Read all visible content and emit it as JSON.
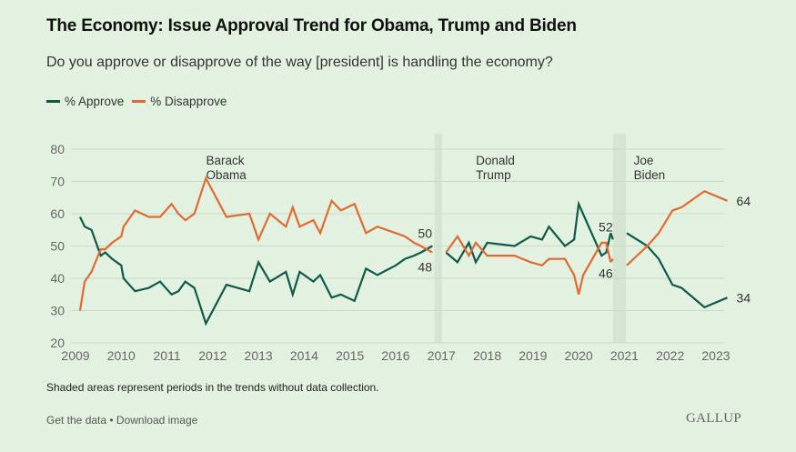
{
  "title": "The Economy: Issue Approval Trend for Obama, Trump and Biden",
  "subtitle": "Do you approve or disapprove of the way [president] is handling the economy?",
  "legend": [
    {
      "label": "% Approve",
      "color": "#0e5a4a"
    },
    {
      "label": "% Disapprove",
      "color": "#e06b32"
    }
  ],
  "note": "Shaded areas represent periods in the trends without data collection.",
  "footer": {
    "get_data": "Get the data",
    "separator": " • ",
    "download": "Download image",
    "logo": "GALLUP"
  },
  "chart_data": {
    "type": "line",
    "title": "The Economy: Issue Approval Trend for Obama, Trump and Biden",
    "xlabel": "",
    "ylabel": "",
    "xlim": [
      2009,
      2023.3
    ],
    "ylim": [
      20,
      80
    ],
    "y_ticks": [
      20,
      30,
      40,
      50,
      60,
      70,
      80
    ],
    "x_ticks": [
      2009,
      2010,
      2011,
      2012,
      2013,
      2014,
      2015,
      2016,
      2017,
      2018,
      2019,
      2020,
      2021,
      2022,
      2023
    ],
    "grid": true,
    "legend_position": "top-left",
    "shaded_gaps": [
      [
        2016.85,
        2017.0
      ],
      [
        2020.75,
        2021.03
      ]
    ],
    "president_labels": [
      {
        "text": [
          "Barack",
          "Obama"
        ],
        "x": 2012.45
      },
      {
        "text": [
          "Donald",
          "Trump"
        ],
        "x": 2018.35
      },
      {
        "text": [
          "Joe",
          "Biden"
        ],
        "x": 2021.8
      }
    ],
    "series": [
      {
        "name": "% Approve",
        "color": "#0e5a4a",
        "segments": [
          {
            "x": [
              2009.1,
              2009.2,
              2009.35,
              2009.55,
              2009.65,
              2009.8,
              2010.0,
              2010.05,
              2010.3,
              2010.6,
              2010.85,
              2011.1,
              2011.25,
              2011.4,
              2011.6,
              2011.85,
              2012.0,
              2012.3,
              2012.8,
              2013.0,
              2013.25,
              2013.6,
              2013.75,
              2013.9,
              2014.2,
              2014.35,
              2014.6,
              2014.8,
              2015.1,
              2015.35,
              2015.6,
              2016.0,
              2016.2,
              2016.4,
              2016.55,
              2016.8
            ],
            "y": [
              59,
              56,
              55,
              47,
              48,
              46,
              44,
              40,
              36,
              37,
              39,
              35,
              36,
              39,
              37,
              26,
              30,
              38,
              36,
              45,
              39,
              42,
              35,
              42,
              39,
              41,
              34,
              35,
              33,
              43,
              41,
              44,
              46,
              47,
              48,
              50
            ]
          },
          {
            "x": [
              2017.1,
              2017.35,
              2017.6,
              2017.75,
              2018.0,
              2018.6,
              2018.95,
              2019.2,
              2019.35,
              2019.7,
              2019.9,
              2020.0,
              2020.5,
              2020.6,
              2020.7
            ],
            "y": [
              48,
              45,
              51,
              45,
              51,
              50,
              53,
              52,
              56,
              50,
              52,
              63,
              47,
              48,
              54
            ]
          },
          {
            "x": [
              2020.7,
              2020.75
            ],
            "y": [
              54,
              52
            ]
          },
          {
            "x": [
              2021.05,
              2021.5,
              2021.75,
              2022.05,
              2022.25,
              2022.75,
              2023.25
            ],
            "y": [
              54,
              50,
              46,
              38,
              37,
              31,
              34
            ]
          }
        ],
        "end_labels": [
          {
            "x": 2016.8,
            "y": 50,
            "text": "50"
          },
          {
            "x": 2020.75,
            "y": 52,
            "text": "52"
          },
          {
            "x": 2023.25,
            "y": 34,
            "text": "34"
          }
        ]
      },
      {
        "name": "% Disapprove",
        "color": "#e06b32",
        "segments": [
          {
            "x": [
              2009.1,
              2009.2,
              2009.35,
              2009.55,
              2009.65,
              2009.8,
              2010.0,
              2010.05,
              2010.3,
              2010.6,
              2010.85,
              2011.1,
              2011.25,
              2011.4,
              2011.6,
              2011.85,
              2012.0,
              2012.3,
              2012.8,
              2013.0,
              2013.25,
              2013.6,
              2013.75,
              2013.9,
              2014.2,
              2014.35,
              2014.6,
              2014.8,
              2015.1,
              2015.35,
              2015.6,
              2016.0,
              2016.2,
              2016.4,
              2016.55,
              2016.8
            ],
            "y": [
              30,
              39,
              42,
              49,
              49,
              51,
              53,
              56,
              61,
              59,
              59,
              63,
              60,
              58,
              60,
              71,
              67,
              59,
              60,
              52,
              60,
              56,
              62,
              56,
              58,
              54,
              64,
              61,
              63,
              54,
              56,
              54,
              53,
              51,
              50,
              48
            ]
          },
          {
            "x": [
              2017.1,
              2017.35,
              2017.6,
              2017.75,
              2018.0,
              2018.6,
              2018.95,
              2019.2,
              2019.35,
              2019.7,
              2019.9,
              2020.0,
              2020.1,
              2020.5,
              2020.6,
              2020.7
            ],
            "y": [
              48,
              53,
              47,
              51,
              47,
              47,
              45,
              44,
              46,
              46,
              41,
              35,
              41,
              51,
              51,
              45
            ]
          },
          {
            "x": [
              2020.7,
              2020.75
            ],
            "y": [
              45,
              46
            ]
          },
          {
            "x": [
              2021.05,
              2021.5,
              2021.75,
              2022.05,
              2022.25,
              2022.75,
              2023.25
            ],
            "y": [
              44,
              50,
              54,
              61,
              62,
              67,
              64
            ]
          }
        ],
        "end_labels": [
          {
            "x": 2016.8,
            "y": 48,
            "text": "48"
          },
          {
            "x": 2020.75,
            "y": 46,
            "text": "46"
          },
          {
            "x": 2023.25,
            "y": 64,
            "text": "64"
          }
        ]
      }
    ]
  }
}
